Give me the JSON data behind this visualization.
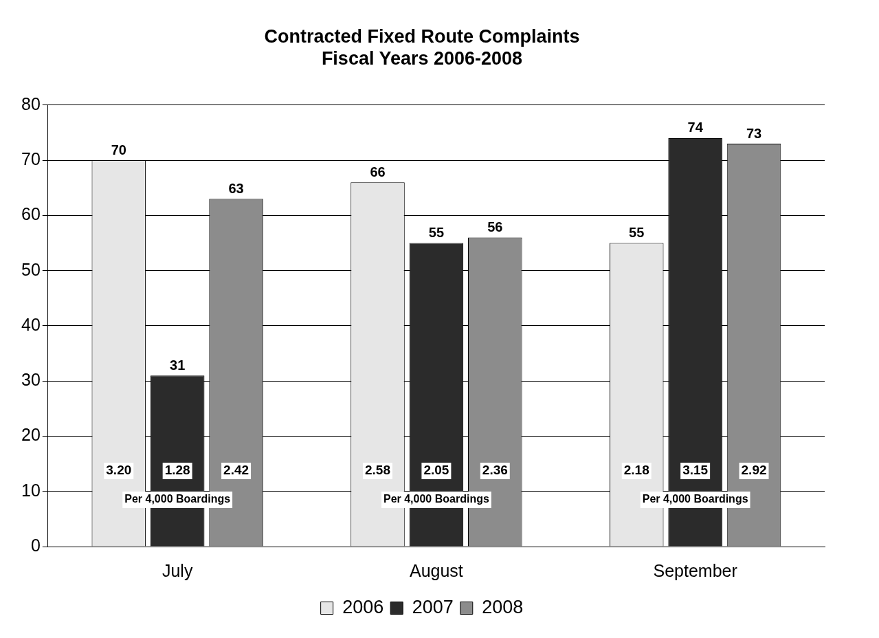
{
  "chart_data": {
    "type": "bar",
    "title": [
      "Contracted Fixed Route Complaints",
      "Fiscal Years 2006-2008"
    ],
    "categories": [
      "July",
      "August",
      "September"
    ],
    "series": [
      {
        "name": "2006",
        "color": "#e6e6e6",
        "values": [
          70,
          66,
          55
        ]
      },
      {
        "name": "2007",
        "color": "#2b2b2b",
        "values": [
          31,
          55,
          74
        ]
      },
      {
        "name": "2008",
        "color": "#8c8c8c",
        "values": [
          63,
          56,
          73
        ]
      }
    ],
    "ylim": [
      0,
      80
    ],
    "yticks": [
      0,
      10,
      20,
      30,
      40,
      50,
      60,
      70,
      80
    ],
    "grid": "y",
    "legend": "bottom",
    "data_labels": true,
    "annotations": [
      "3.20",
      "1.28",
      "2.42",
      "Per 4,000 Boardings",
      "2.58",
      "2.05",
      "2.36",
      "Per 4,000 Boardings",
      "2.18",
      "3.15",
      "2.92",
      "Per 4,000 Boardings"
    ]
  }
}
